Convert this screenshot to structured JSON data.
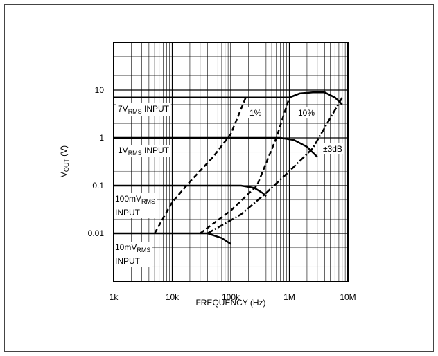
{
  "chart_data": {
    "type": "line",
    "x_label": "FREQUENCY (Hz)",
    "y_label": {
      "main": "V",
      "sub": "OUT",
      "tail": " (V)"
    },
    "log_x": true,
    "log_y": true,
    "grid": true,
    "color": "#000000",
    "xlim": [
      1000,
      10000000
    ],
    "xticks": [
      {
        "value": 1000,
        "label": "1k"
      },
      {
        "value": 10000,
        "label": "10k"
      },
      {
        "value": 100000,
        "label": "100k"
      },
      {
        "value": 1000000,
        "label": "1M"
      },
      {
        "value": 10000000,
        "label": "10M"
      }
    ],
    "ylim": [
      0.001,
      100
    ],
    "yticks": [
      0.01,
      0.1,
      1,
      10
    ],
    "series": [
      {
        "style": "solid",
        "x": [
          1000,
          1000000,
          1500000,
          2500000,
          4000000,
          6000000,
          8000000
        ],
        "values": [
          7,
          7,
          8.5,
          9,
          9,
          7,
          5
        ]
      },
      {
        "style": "solid",
        "x": [
          1000,
          700000,
          1200000,
          2000000,
          3000000
        ],
        "values": [
          1,
          1,
          0.9,
          0.65,
          0.4
        ]
      },
      {
        "style": "solid",
        "x": [
          1000,
          150000,
          250000,
          350000,
          400000
        ],
        "values": [
          0.1,
          0.1,
          0.09,
          0.07,
          0.06
        ]
      },
      {
        "style": "solid",
        "x": [
          1000,
          40000,
          70000,
          100000
        ],
        "values": [
          0.01,
          0.01,
          0.008,
          0.006
        ]
      },
      {
        "style": "dashed",
        "x": [
          5000,
          10000,
          20000,
          50000,
          100000,
          180000
        ],
        "values": [
          0.01,
          0.045,
          0.12,
          0.4,
          1.2,
          7
        ]
      },
      {
        "style": "dashed",
        "x": [
          30000,
          100000,
          280000,
          600000,
          1000000
        ],
        "values": [
          0.01,
          0.03,
          0.1,
          1,
          7
        ]
      },
      {
        "style": "dashdot",
        "x": [
          40000,
          150000,
          400000,
          1000000,
          2500000,
          8000000
        ],
        "values": [
          0.01,
          0.025,
          0.07,
          0.2,
          0.6,
          7
        ]
      }
    ],
    "annotations": [
      {
        "parts": [
          "7V",
          "RMS",
          " INPUT"
        ]
      },
      {
        "parts": [
          "1V",
          "RMS",
          " INPUT"
        ]
      },
      {
        "parts": [
          "100mV",
          "RMS"
        ],
        "line2": "INPUT"
      },
      {
        "parts": [
          "10mV",
          "RMS"
        ],
        "line2": "INPUT"
      },
      {
        "parts": [
          "1%"
        ]
      },
      {
        "parts": [
          "10%"
        ]
      },
      {
        "parts": [
          "±3dB"
        ]
      }
    ]
  }
}
